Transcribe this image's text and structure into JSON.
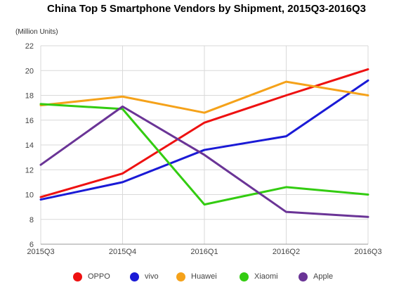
{
  "chart_data": {
    "type": "line",
    "title": "China Top 5 Smartphone Vendors by Shipment, 2015Q3-2016Q3",
    "unit_label": "(Million Units)",
    "categories": [
      "2015Q3",
      "2015Q4",
      "2016Q1",
      "2016Q2",
      "2016Q3"
    ],
    "ylim": [
      6,
      22
    ],
    "yticks": [
      "6",
      "8",
      "10",
      "12",
      "14",
      "16",
      "18",
      "20",
      "22"
    ],
    "grid": true,
    "legend_position": "bottom",
    "series": [
      {
        "name": "OPPO",
        "color": "#ee1111",
        "values": [
          9.8,
          11.7,
          15.8,
          18.0,
          20.1
        ]
      },
      {
        "name": "vivo",
        "color": "#1a1ad6",
        "values": [
          9.6,
          11.0,
          13.6,
          14.7,
          19.2
        ]
      },
      {
        "name": "Huawei",
        "color": "#f5a21a",
        "values": [
          17.2,
          17.9,
          16.6,
          19.1,
          18.0
        ]
      },
      {
        "name": "Xiaomi",
        "color": "#33cc11",
        "values": [
          17.3,
          16.9,
          9.2,
          10.6,
          10.0
        ]
      },
      {
        "name": "Apple",
        "color": "#6a3496",
        "values": [
          12.4,
          17.1,
          13.2,
          8.6,
          8.2
        ]
      }
    ]
  }
}
